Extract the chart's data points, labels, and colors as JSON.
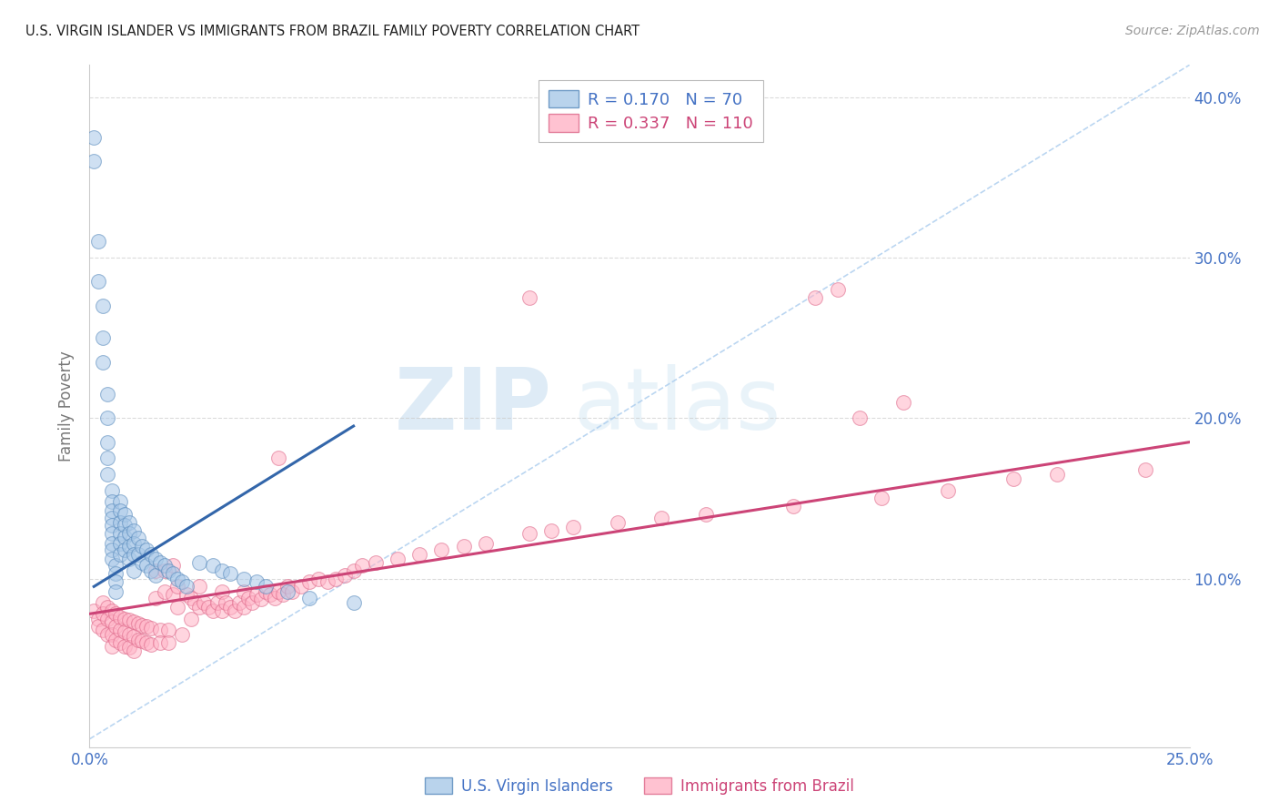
{
  "title": "U.S. VIRGIN ISLANDER VS IMMIGRANTS FROM BRAZIL FAMILY POVERTY CORRELATION CHART",
  "source": "Source: ZipAtlas.com",
  "ylabel": "Family Poverty",
  "xlim": [
    0.0,
    0.25
  ],
  "ylim": [
    -0.005,
    0.42
  ],
  "color_blue": "#a8c8e8",
  "color_pink": "#ffb3c6",
  "color_edge_blue": "#5588bb",
  "color_edge_pink": "#dd6688",
  "color_line_blue": "#3366aa",
  "color_line_pink": "#cc4477",
  "color_dash": "#aaccee",
  "color_title": "#222222",
  "color_source": "#999999",
  "color_tick_labels": "#4472c4",
  "color_grid": "#cccccc",
  "color_legend_blue": "#4472c4",
  "color_legend_pink": "#cc4477",
  "watermark_zip": "ZIP",
  "watermark_atlas": "atlas",
  "marker_size": 130,
  "alpha_points": 0.55,
  "blue_points_x": [
    0.001,
    0.001,
    0.002,
    0.002,
    0.003,
    0.003,
    0.003,
    0.004,
    0.004,
    0.004,
    0.004,
    0.004,
    0.005,
    0.005,
    0.005,
    0.005,
    0.005,
    0.005,
    0.005,
    0.005,
    0.005,
    0.006,
    0.006,
    0.006,
    0.006,
    0.007,
    0.007,
    0.007,
    0.007,
    0.007,
    0.007,
    0.008,
    0.008,
    0.008,
    0.008,
    0.009,
    0.009,
    0.009,
    0.009,
    0.01,
    0.01,
    0.01,
    0.01,
    0.011,
    0.011,
    0.012,
    0.012,
    0.013,
    0.013,
    0.014,
    0.014,
    0.015,
    0.015,
    0.016,
    0.017,
    0.018,
    0.019,
    0.02,
    0.021,
    0.022,
    0.025,
    0.028,
    0.03,
    0.032,
    0.035,
    0.038,
    0.04,
    0.045,
    0.05,
    0.06
  ],
  "blue_points_y": [
    0.375,
    0.36,
    0.31,
    0.285,
    0.27,
    0.25,
    0.235,
    0.215,
    0.2,
    0.185,
    0.175,
    0.165,
    0.155,
    0.148,
    0.142,
    0.138,
    0.133,
    0.128,
    0.122,
    0.118,
    0.112,
    0.108,
    0.103,
    0.098,
    0.092,
    0.148,
    0.142,
    0.135,
    0.128,
    0.122,
    0.115,
    0.14,
    0.133,
    0.126,
    0.118,
    0.135,
    0.128,
    0.12,
    0.112,
    0.13,
    0.122,
    0.115,
    0.105,
    0.125,
    0.115,
    0.12,
    0.11,
    0.118,
    0.108,
    0.115,
    0.105,
    0.112,
    0.102,
    0.11,
    0.108,
    0.105,
    0.103,
    0.1,
    0.098,
    0.095,
    0.11,
    0.108,
    0.105,
    0.103,
    0.1,
    0.098,
    0.095,
    0.092,
    0.088,
    0.085
  ],
  "pink_points_x": [
    0.001,
    0.002,
    0.002,
    0.003,
    0.003,
    0.003,
    0.004,
    0.004,
    0.004,
    0.005,
    0.005,
    0.005,
    0.005,
    0.006,
    0.006,
    0.006,
    0.007,
    0.007,
    0.007,
    0.008,
    0.008,
    0.008,
    0.009,
    0.009,
    0.009,
    0.01,
    0.01,
    0.01,
    0.011,
    0.011,
    0.012,
    0.012,
    0.013,
    0.013,
    0.014,
    0.014,
    0.015,
    0.015,
    0.016,
    0.016,
    0.017,
    0.017,
    0.018,
    0.018,
    0.019,
    0.019,
    0.02,
    0.02,
    0.021,
    0.022,
    0.023,
    0.023,
    0.024,
    0.025,
    0.025,
    0.026,
    0.027,
    0.028,
    0.029,
    0.03,
    0.03,
    0.031,
    0.032,
    0.033,
    0.034,
    0.035,
    0.035,
    0.036,
    0.037,
    0.038,
    0.039,
    0.04,
    0.041,
    0.042,
    0.043,
    0.044,
    0.045,
    0.046,
    0.048,
    0.05,
    0.052,
    0.054,
    0.056,
    0.058,
    0.06,
    0.062,
    0.065,
    0.07,
    0.075,
    0.08,
    0.085,
    0.09,
    0.1,
    0.105,
    0.11,
    0.12,
    0.13,
    0.14,
    0.16,
    0.18,
    0.195,
    0.21,
    0.22,
    0.24,
    0.043,
    0.1,
    0.165,
    0.17,
    0.175,
    0.185
  ],
  "pink_points_y": [
    0.08,
    0.075,
    0.07,
    0.085,
    0.078,
    0.068,
    0.082,
    0.075,
    0.065,
    0.08,
    0.073,
    0.065,
    0.058,
    0.078,
    0.07,
    0.062,
    0.076,
    0.068,
    0.06,
    0.075,
    0.067,
    0.058,
    0.074,
    0.065,
    0.057,
    0.073,
    0.064,
    0.055,
    0.072,
    0.062,
    0.071,
    0.061,
    0.07,
    0.06,
    0.069,
    0.059,
    0.105,
    0.088,
    0.068,
    0.06,
    0.105,
    0.092,
    0.068,
    0.06,
    0.108,
    0.09,
    0.095,
    0.082,
    0.065,
    0.09,
    0.088,
    0.075,
    0.085,
    0.095,
    0.082,
    0.085,
    0.082,
    0.08,
    0.085,
    0.092,
    0.08,
    0.085,
    0.082,
    0.08,
    0.085,
    0.092,
    0.082,
    0.088,
    0.085,
    0.09,
    0.087,
    0.092,
    0.09,
    0.088,
    0.092,
    0.09,
    0.095,
    0.092,
    0.095,
    0.098,
    0.1,
    0.098,
    0.1,
    0.102,
    0.105,
    0.108,
    0.11,
    0.112,
    0.115,
    0.118,
    0.12,
    0.122,
    0.128,
    0.13,
    0.132,
    0.135,
    0.138,
    0.14,
    0.145,
    0.15,
    0.155,
    0.162,
    0.165,
    0.168,
    0.175,
    0.275,
    0.275,
    0.28,
    0.2,
    0.21
  ],
  "blue_trend_x": [
    0.001,
    0.06
  ],
  "blue_trend_y": [
    0.095,
    0.195
  ],
  "pink_trend_x": [
    0.0,
    0.25
  ],
  "pink_trend_y": [
    0.078,
    0.185
  ],
  "ref_line_x": [
    0.0,
    0.25
  ],
  "ref_line_y": [
    0.0,
    0.42
  ]
}
